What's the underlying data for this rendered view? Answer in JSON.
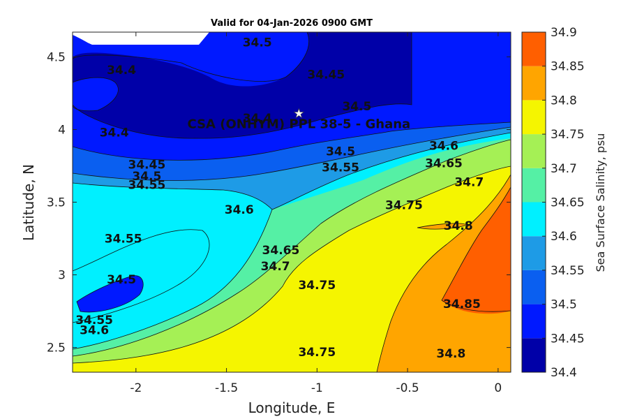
{
  "chart_data": {
    "type": "contour",
    "title": "Valid for 04-Jan-2026 0900 GMT",
    "xlabel": "Longitude, E",
    "ylabel": "Latitude, N",
    "xlim": [
      -2.35,
      0.07
    ],
    "ylim": [
      2.33,
      4.67
    ],
    "xticks": [
      -2,
      -1.5,
      -1,
      -0.5,
      0
    ],
    "xtick_labels": [
      "-2",
      "-1.5",
      "-1",
      "-0.5",
      "0"
    ],
    "yticks": [
      2.5,
      3,
      3.5,
      4,
      4.5
    ],
    "ytick_labels": [
      "2.5",
      "3",
      "3.5",
      "4",
      "4.5"
    ],
    "colorbar": {
      "label": "Sea Surface Salinity, psu",
      "levels": [
        34.4,
        34.45,
        34.5,
        34.55,
        34.6,
        34.65,
        34.7,
        34.75,
        34.8,
        34.85,
        34.9
      ],
      "tick_labels": [
        "34.4",
        "34.45",
        "34.5",
        "34.55",
        "34.6",
        "34.65",
        "34.7",
        "34.75",
        "34.8",
        "34.85",
        "34.9"
      ],
      "colors": [
        "#0000a8",
        "#0019ff",
        "#0a5ff0",
        "#1e9be6",
        "#00f0ff",
        "#55f0a5",
        "#a5f055",
        "#f5f500",
        "#ffa500",
        "#ff5f00"
      ]
    },
    "contour_labels": [
      {
        "text": "34.5",
        "lon": -1.33,
        "lat": 4.6
      },
      {
        "text": "34.4",
        "lon": -2.08,
        "lat": 4.41
      },
      {
        "text": "34.45",
        "lon": -0.95,
        "lat": 4.38
      },
      {
        "text": "34.4",
        "lon": -1.33,
        "lat": 4.08
      },
      {
        "text": "34.4",
        "lon": -2.12,
        "lat": 3.98
      },
      {
        "text": "34.5",
        "lon": -0.78,
        "lat": 4.16
      },
      {
        "text": "34.5",
        "lon": -0.87,
        "lat": 3.85
      },
      {
        "text": "34.55",
        "lon": -0.87,
        "lat": 3.74
      },
      {
        "text": "34.45",
        "lon": -1.94,
        "lat": 3.76
      },
      {
        "text": "34.5",
        "lon": -1.94,
        "lat": 3.68
      },
      {
        "text": "34.55",
        "lon": -1.94,
        "lat": 3.62
      },
      {
        "text": "34.6",
        "lon": -0.3,
        "lat": 3.89
      },
      {
        "text": "34.65",
        "lon": -0.3,
        "lat": 3.77
      },
      {
        "text": "34.7",
        "lon": -0.16,
        "lat": 3.64
      },
      {
        "text": "34.6",
        "lon": -1.43,
        "lat": 3.45
      },
      {
        "text": "34.75",
        "lon": -0.52,
        "lat": 3.48
      },
      {
        "text": "34.8",
        "lon": -0.22,
        "lat": 3.34
      },
      {
        "text": "34.55",
        "lon": -2.07,
        "lat": 3.25
      },
      {
        "text": "34.65",
        "lon": -1.2,
        "lat": 3.17
      },
      {
        "text": "34.7",
        "lon": -1.23,
        "lat": 3.06
      },
      {
        "text": "34.5",
        "lon": -2.08,
        "lat": 2.97
      },
      {
        "text": "34.75",
        "lon": -1.0,
        "lat": 2.93
      },
      {
        "text": "34.85",
        "lon": -0.2,
        "lat": 2.8
      },
      {
        "text": "34.55",
        "lon": -2.23,
        "lat": 2.69
      },
      {
        "text": "34.6",
        "lon": -2.23,
        "lat": 2.62
      },
      {
        "text": "34.75",
        "lon": -1.0,
        "lat": 2.47
      },
      {
        "text": "34.8",
        "lon": -0.26,
        "lat": 2.46
      }
    ],
    "annotation": {
      "text": "CSA (ONHYM) PPL 38-5 - Ghana",
      "marker": "star",
      "lon": -1.1,
      "lat": 4.11
    },
    "grid": false,
    "legend": "colorbar-right"
  }
}
